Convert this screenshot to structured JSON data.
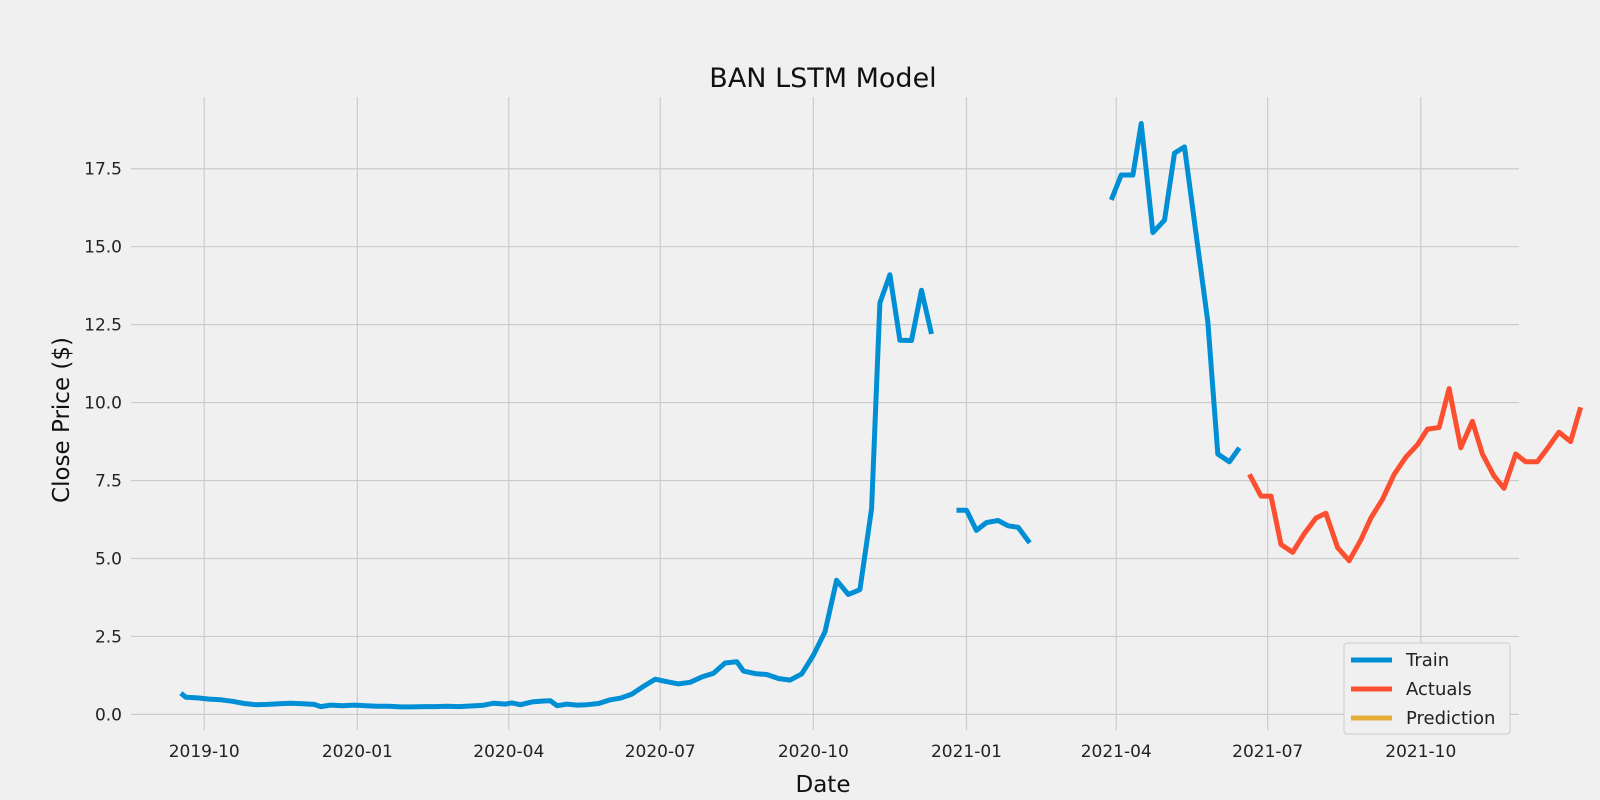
{
  "chart_data": {
    "type": "line",
    "title": "BAN LSTM Model",
    "xlabel": "Date",
    "ylabel": "Close Price ($)",
    "grid": true,
    "legend_placement": "lower-right",
    "xlim": [
      "2019-08-18",
      "2021-11-29"
    ],
    "ylim": [
      -0.5,
      19.8
    ],
    "x_ticks": [
      "2019-10-01",
      "2020-01-01",
      "2020-04-01",
      "2020-07-01",
      "2020-10-01",
      "2021-01-01",
      "2021-04-01",
      "2021-07-01",
      "2021-10-01"
    ],
    "x_tick_labels": [
      "2019-10",
      "2020-01",
      "2020-04",
      "2020-07",
      "2020-10",
      "2021-01",
      "2021-04",
      "2021-07",
      "2021-10"
    ],
    "y_ticks": [
      0.0,
      2.5,
      5.0,
      7.5,
      10.0,
      12.5,
      15.0,
      17.5
    ],
    "y_tick_labels": [
      "0.0",
      "2.5",
      "5.0",
      "7.5",
      "10.0",
      "12.5",
      "15.0",
      "17.5"
    ],
    "series": [
      {
        "name": "Train",
        "color": "#008fd5",
        "segments": [
          [
            [
              "2019-09-17",
              0.68
            ],
            [
              "2019-09-20",
              0.55
            ],
            [
              "2019-09-27",
              0.53
            ],
            [
              "2019-10-04",
              0.49
            ],
            [
              "2019-10-11",
              0.47
            ],
            [
              "2019-10-18",
              0.42
            ],
            [
              "2019-10-25",
              0.35
            ],
            [
              "2019-11-01",
              0.31
            ],
            [
              "2019-11-08",
              0.32
            ],
            [
              "2019-11-15",
              0.34
            ],
            [
              "2019-11-22",
              0.36
            ],
            [
              "2019-11-29",
              0.34
            ],
            [
              "2019-12-06",
              0.32
            ],
            [
              "2019-12-10",
              0.25
            ],
            [
              "2019-12-16",
              0.3
            ],
            [
              "2019-12-23",
              0.28
            ],
            [
              "2019-12-30",
              0.3
            ],
            [
              "2020-01-06",
              0.28
            ],
            [
              "2020-01-13",
              0.26
            ],
            [
              "2020-01-20",
              0.26
            ],
            [
              "2020-01-27",
              0.24
            ],
            [
              "2020-02-03",
              0.24
            ],
            [
              "2020-02-10",
              0.25
            ],
            [
              "2020-02-17",
              0.25
            ],
            [
              "2020-02-24",
              0.26
            ],
            [
              "2020-03-02",
              0.25
            ],
            [
              "2020-03-09",
              0.27
            ],
            [
              "2020-03-16",
              0.29
            ],
            [
              "2020-03-23",
              0.36
            ],
            [
              "2020-03-30",
              0.33
            ],
            [
              "2020-04-03",
              0.37
            ],
            [
              "2020-04-08",
              0.31
            ],
            [
              "2020-04-15",
              0.4
            ],
            [
              "2020-04-22",
              0.43
            ],
            [
              "2020-04-26",
              0.44
            ],
            [
              "2020-04-30",
              0.28
            ],
            [
              "2020-05-06",
              0.33
            ],
            [
              "2020-05-12",
              0.3
            ],
            [
              "2020-05-18",
              0.31
            ],
            [
              "2020-05-25",
              0.35
            ],
            [
              "2020-06-01",
              0.47
            ],
            [
              "2020-06-07",
              0.52
            ],
            [
              "2020-06-14",
              0.65
            ],
            [
              "2020-06-21",
              0.9
            ],
            [
              "2020-06-28",
              1.13
            ],
            [
              "2020-07-05",
              1.05
            ],
            [
              "2020-07-12",
              0.98
            ],
            [
              "2020-07-19",
              1.03
            ],
            [
              "2020-07-26",
              1.2
            ],
            [
              "2020-08-02",
              1.32
            ],
            [
              "2020-08-09",
              1.65
            ],
            [
              "2020-08-16",
              1.69
            ],
            [
              "2020-08-20",
              1.39
            ],
            [
              "2020-08-27",
              1.31
            ],
            [
              "2020-09-03",
              1.28
            ],
            [
              "2020-09-10",
              1.15
            ],
            [
              "2020-09-17",
              1.1
            ],
            [
              "2020-09-24",
              1.3
            ],
            [
              "2020-10-01",
              1.9
            ],
            [
              "2020-10-08",
              2.65
            ],
            [
              "2020-10-15",
              4.3
            ],
            [
              "2020-10-22",
              3.85
            ],
            [
              "2020-10-29",
              4.0
            ],
            [
              "2020-11-05",
              6.6
            ],
            [
              "2020-11-10",
              13.2
            ],
            [
              "2020-11-16",
              14.1
            ],
            [
              "2020-11-22",
              12.0
            ],
            [
              "2020-11-29",
              11.99
            ],
            [
              "2020-12-05",
              13.6
            ],
            [
              "2020-12-11",
              12.2
            ]
          ],
          [
            [
              "2020-12-26",
              6.55
            ],
            [
              "2021-01-01",
              6.55
            ],
            [
              "2021-01-07",
              5.9
            ],
            [
              "2021-01-13",
              6.15
            ],
            [
              "2021-01-20",
              6.22
            ],
            [
              "2021-01-26",
              6.05
            ],
            [
              "2021-02-01",
              6.0
            ],
            [
              "2021-02-08",
              5.5
            ]
          ],
          [
            [
              "2021-03-29",
              16.5
            ],
            [
              "2021-04-04",
              17.3
            ],
            [
              "2021-04-11",
              17.3
            ],
            [
              "2021-04-16",
              18.95
            ],
            [
              "2021-04-23",
              15.45
            ],
            [
              "2021-04-30",
              15.85
            ],
            [
              "2021-05-06",
              18.0
            ],
            [
              "2021-05-12",
              18.2
            ],
            [
              "2021-05-19",
              15.4
            ],
            [
              "2021-05-26",
              12.6
            ],
            [
              "2021-06-01",
              8.35
            ],
            [
              "2021-06-08",
              8.1
            ],
            [
              "2021-06-14",
              8.55
            ]
          ]
        ]
      },
      {
        "name": "Actuals",
        "color": "#fc4f30",
        "segments": [
          [
            [
              "2021-06-20",
              7.7
            ],
            [
              "2021-06-27",
              7.0
            ],
            [
              "2021-07-03",
              7.0
            ],
            [
              "2021-07-09",
              5.45
            ],
            [
              "2021-07-16",
              5.2
            ],
            [
              "2021-07-23",
              5.8
            ],
            [
              "2021-07-30",
              6.3
            ],
            [
              "2021-08-05",
              6.45
            ],
            [
              "2021-08-12",
              5.35
            ],
            [
              "2021-08-19",
              4.93
            ],
            [
              "2021-08-26",
              5.6
            ],
            [
              "2021-09-01",
              6.3
            ],
            [
              "2021-09-08",
              6.9
            ],
            [
              "2021-09-15",
              7.7
            ],
            [
              "2021-09-22",
              8.25
            ],
            [
              "2021-09-29",
              8.65
            ],
            [
              "2021-10-05",
              9.15
            ],
            [
              "2021-10-12",
              9.2
            ],
            [
              "2021-10-18",
              10.45
            ],
            [
              "2021-10-25",
              8.55
            ],
            [
              "2021-11-01",
              9.4
            ],
            [
              "2021-11-07",
              8.35
            ],
            [
              "2021-11-14",
              7.65
            ],
            [
              "2021-11-20",
              7.25
            ],
            [
              "2021-11-27",
              8.35
            ],
            [
              "2021-12-03",
              8.1
            ],
            [
              "2021-12-10",
              8.1
            ],
            [
              "2021-12-17",
              8.6
            ],
            [
              "2021-12-23",
              9.05
            ],
            [
              "2021-12-30",
              8.75
            ],
            [
              "2022-01-05",
              9.85
            ]
          ]
        ]
      },
      {
        "name": "Prediction",
        "color": "#e5ae38",
        "segments": []
      }
    ]
  }
}
